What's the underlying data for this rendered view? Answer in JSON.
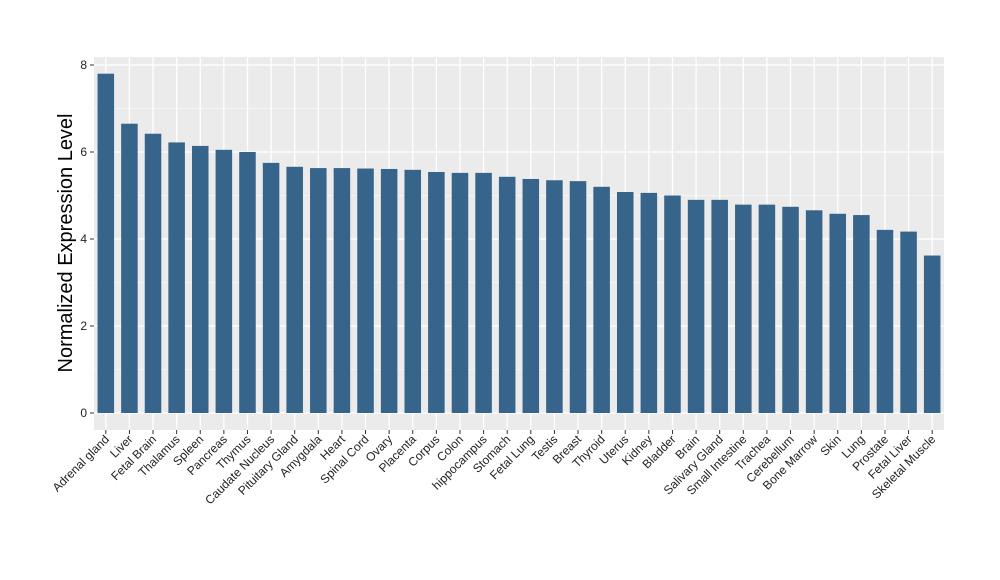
{
  "chart_data": {
    "type": "bar",
    "title": "",
    "xlabel": "",
    "ylabel": "Normalized Expression Level",
    "ylim": [
      0,
      8.3
    ],
    "yticks": [
      0,
      2,
      4,
      6,
      8
    ],
    "grid": true,
    "colors": {
      "bar": "#36648B",
      "panel": "#EBEBEB",
      "grid": "#FFFFFF"
    },
    "categories": [
      "Adrenal gland",
      "Liver",
      "Fetal Brain",
      "Thalamus",
      "Spleen",
      "Pancreas",
      "Thymus",
      "Caudate Nucleus",
      "Pituitary Gland",
      "Amygdala",
      "Heart",
      "Spinal Cord",
      "Ovary",
      "Placenta",
      "Corpus",
      "Colon",
      "hippocampus",
      "Stomach",
      "Fetal Lung",
      "Testis",
      "Breast",
      "Thyroid",
      "Uterus",
      "Kidney",
      "Bladder",
      "Brain",
      "Salivary Gland",
      "Small Intestine",
      "Trachea",
      "Cerebellum",
      "Bone Marrow",
      "Skin",
      "Lung",
      "Prostate",
      "Fetal Liver",
      "Skeletal Muscle"
    ],
    "values": [
      7.8,
      6.65,
      6.42,
      6.22,
      6.14,
      6.05,
      6.0,
      5.75,
      5.66,
      5.63,
      5.63,
      5.62,
      5.61,
      5.59,
      5.54,
      5.52,
      5.52,
      5.43,
      5.38,
      5.35,
      5.33,
      5.2,
      5.08,
      5.06,
      5.0,
      4.9,
      4.9,
      4.79,
      4.79,
      4.74,
      4.66,
      4.58,
      4.55,
      4.21,
      4.17,
      3.62
    ]
  }
}
